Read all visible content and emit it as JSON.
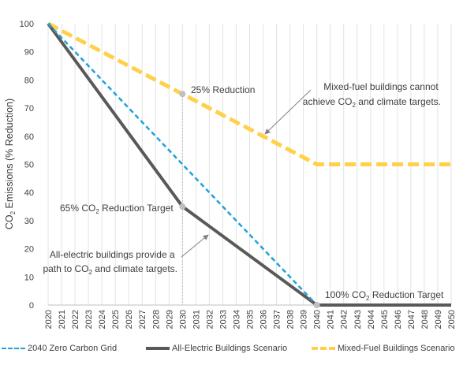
{
  "chart_data": {
    "type": "line",
    "xlabel": "",
    "ylabel_parts": [
      "CO",
      "2",
      " Emissions (% Reduction)"
    ],
    "ylim": [
      0,
      100
    ],
    "yticks": [
      0,
      10,
      20,
      30,
      40,
      50,
      60,
      70,
      80,
      90,
      100
    ],
    "x": [
      2020,
      2021,
      2022,
      2023,
      2024,
      2025,
      2026,
      2027,
      2028,
      2029,
      2030,
      2031,
      2032,
      2033,
      2034,
      2035,
      2036,
      2037,
      2038,
      2039,
      2040,
      2041,
      2042,
      2043,
      2044,
      2045,
      2046,
      2047,
      2048,
      2049,
      2050
    ],
    "grid": "vertical",
    "series": [
      {
        "name": "2040 Zero Carbon Grid",
        "color": "#1FA2D8",
        "style": "dashed",
        "points": [
          [
            2020,
            100
          ],
          [
            2040,
            0
          ]
        ]
      },
      {
        "name": "All-Electric Buildings Scenario",
        "color": "#595959",
        "style": "solid",
        "points": [
          [
            2020,
            100
          ],
          [
            2030,
            35
          ],
          [
            2040,
            0
          ],
          [
            2050,
            0
          ]
        ]
      },
      {
        "name": "Mixed-Fuel Buildings Scenario",
        "color": "#FFD04A",
        "style": "dashed",
        "points": [
          [
            2020,
            100
          ],
          [
            2030,
            75
          ],
          [
            2040,
            50
          ],
          [
            2050,
            50
          ]
        ]
      }
    ],
    "markers": [
      {
        "x": 2030,
        "y": 75,
        "color": "#BFBFBF"
      },
      {
        "x": 2030,
        "y": 35,
        "color": "#BFBFBF"
      },
      {
        "x": 2040,
        "y": 0,
        "color": "#BFBFBF"
      }
    ],
    "reference_line": {
      "x": 2030,
      "style": "dotted",
      "color": "#BFBFBF"
    },
    "annotations": {
      "reduction_25": "25% Reduction",
      "target_65": [
        "65% CO",
        "2",
        " Reduction Target"
      ],
      "target_100": [
        "100% CO",
        "2",
        " Reduction Target"
      ],
      "mixed_note": [
        "Mixed-fuel buildings cannot",
        "achieve CO",
        "2",
        " and climate targets."
      ],
      "electric_note": [
        "All-electric buildings provide a",
        "path to CO",
        "2",
        " and climate targets."
      ]
    },
    "legend_position": "bottom"
  }
}
